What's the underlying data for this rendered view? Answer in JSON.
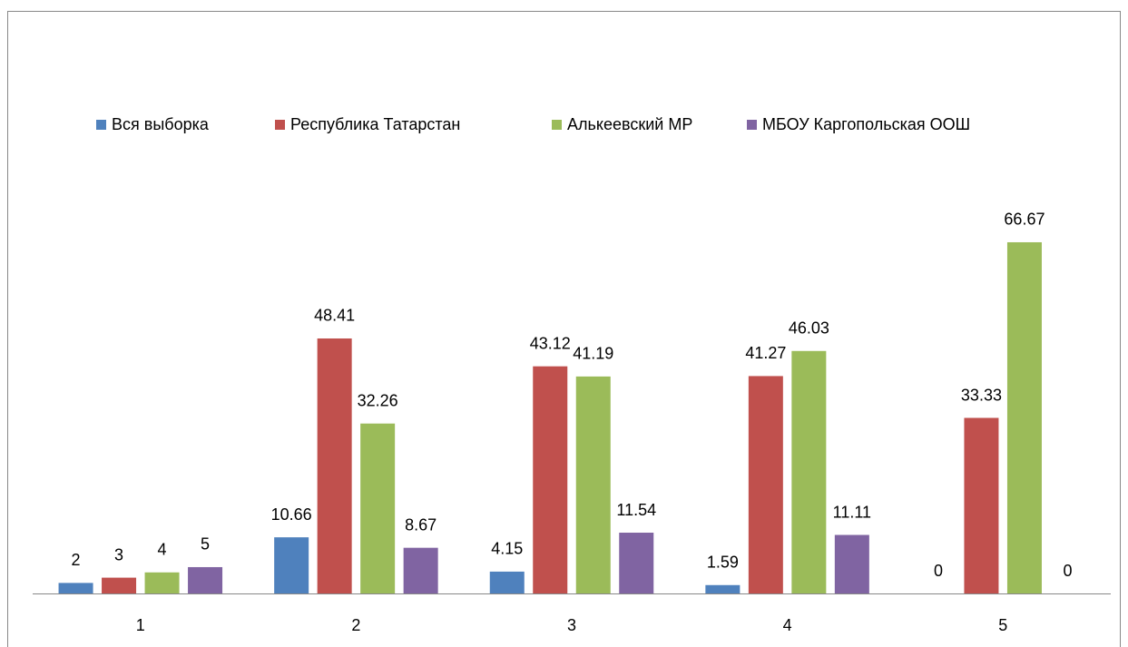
{
  "chart_data": {
    "type": "bar",
    "categories": [
      "1",
      "2",
      "3",
      "4",
      "5"
    ],
    "series": [
      {
        "name": "Вся выборка",
        "color": "#4f81bd",
        "values": [
          2,
          10.66,
          4.15,
          1.59,
          0
        ]
      },
      {
        "name": "Республика Татарстан",
        "color": "#c0504d",
        "values": [
          3,
          48.41,
          43.12,
          41.27,
          33.33
        ]
      },
      {
        "name": "Алькеевский МР",
        "color": "#9bbb59",
        "values": [
          4,
          32.26,
          41.19,
          46.03,
          66.67
        ]
      },
      {
        "name": "МБОУ Каргопольская ООШ",
        "color": "#8064a2",
        "values": [
          5,
          8.67,
          11.54,
          11.11,
          0
        ]
      }
    ],
    "ylim": [
      0,
      100
    ],
    "legend": "top"
  }
}
